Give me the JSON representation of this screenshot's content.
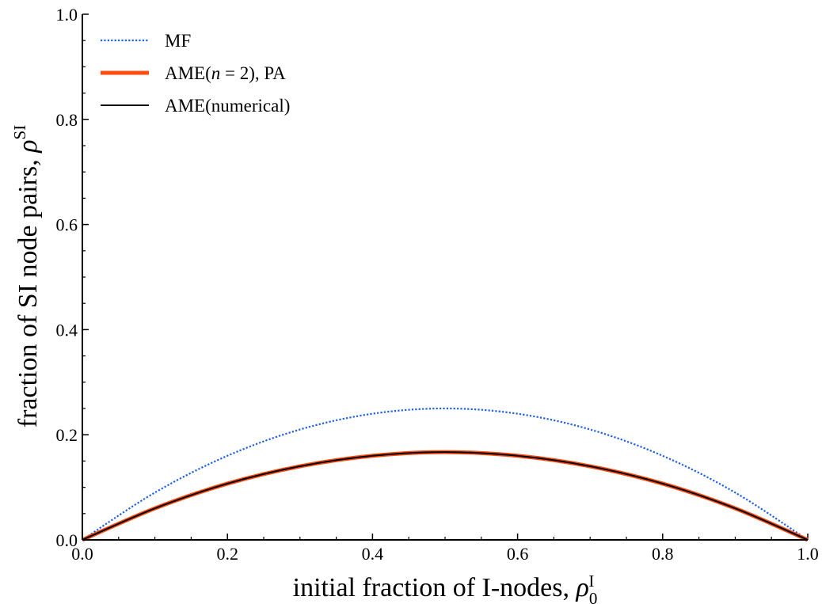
{
  "chart_data": {
    "type": "line",
    "xlabel": {
      "text": "initial fraction of I-nodes, ",
      "symbol": "ρ",
      "subscript": "0",
      "superscript": "I"
    },
    "ylabel": {
      "text": "fraction of SI node pairs, ",
      "symbol": "ρ",
      "superscript": "SI"
    },
    "xlim": [
      0.0,
      1.0
    ],
    "ylim": [
      0.0,
      1.0
    ],
    "x_ticks": [
      0.0,
      0.2,
      0.4,
      0.6,
      0.8,
      1.0
    ],
    "y_ticks": [
      0.0,
      0.2,
      0.4,
      0.6,
      0.8,
      1.0
    ],
    "x_tick_labels": [
      "0.0",
      "0.2",
      "0.4",
      "0.6",
      "0.8",
      "1.0"
    ],
    "y_tick_labels": [
      "0.0",
      "0.2",
      "0.4",
      "0.6",
      "0.8",
      "1.0"
    ],
    "x_minor_step": 0.05,
    "y_minor_step": 0.05,
    "grid": false,
    "legend_position": "top-left",
    "x": [
      0.0,
      0.1,
      0.2,
      0.3,
      0.4,
      0.5,
      0.6,
      0.7,
      0.8,
      0.9,
      1.0
    ],
    "series": [
      {
        "name": "MF",
        "legend_parts": [
          "MF"
        ],
        "color": "#1f5fe0",
        "style": "dotted",
        "values": [
          0.0,
          0.09,
          0.16,
          0.21,
          0.24,
          0.25,
          0.24,
          0.21,
          0.16,
          0.09,
          0.0
        ]
      },
      {
        "name": "AME(n = 2), PA",
        "legend_parts": [
          "AME(",
          "n",
          " = 2), PA"
        ],
        "color": "#ff4a10",
        "style": "thick",
        "values": [
          0.0,
          0.06,
          0.107,
          0.14,
          0.16,
          0.167,
          0.16,
          0.14,
          0.107,
          0.06,
          0.0
        ]
      },
      {
        "name": "AME(numerical)",
        "legend_parts": [
          "AME(numerical)"
        ],
        "color": "#000000",
        "style": "solid",
        "values": [
          0.0,
          0.06,
          0.107,
          0.14,
          0.16,
          0.167,
          0.16,
          0.14,
          0.107,
          0.06,
          0.0
        ]
      }
    ]
  }
}
